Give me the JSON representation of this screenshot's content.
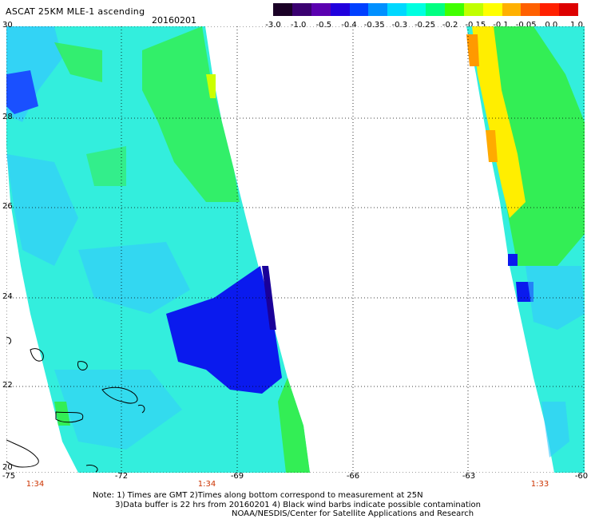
{
  "header": {
    "title": "ASCAT 25KM MLE-1 ascending",
    "date": "20160201"
  },
  "colorbar": {
    "labels": [
      "-3.0",
      "-1.0",
      "-0.5",
      "-0.4",
      "-0.35",
      "-0.3",
      "-0.25",
      "-0.2",
      "-0.15",
      "-0.1",
      "-0.05",
      "0.0",
      "1.0"
    ],
    "colors": [
      "#1a0026",
      "#3a0070",
      "#5a00b0",
      "#2000dd",
      "#0040ff",
      "#0090ff",
      "#00d8ff",
      "#00ffe0",
      "#00ff80",
      "#40ff00",
      "#c0ff00",
      "#ffff00",
      "#ffb000",
      "#ff6000",
      "#ff2000",
      "#dd0000"
    ]
  },
  "axes": {
    "lat_labels": [
      "30",
      "28",
      "26",
      "24",
      "22",
      "20"
    ],
    "lon_labels": [
      "-75",
      "-72",
      "-69",
      "-66",
      "-63",
      "-60"
    ],
    "time_labels": [
      "1:34",
      "1:34",
      "1:33"
    ]
  },
  "notes": {
    "line1": "Note: 1) Times are GMT 2)Times along bottom correspond to measurement at 25N",
    "line2": "3)Data buffer is 22 hrs from 20160201 4) Black wind barbs indicate possible contamination",
    "line3": "NOAA/NESDIS/Center for Satellite Applications and Research"
  },
  "palette": {
    "swath_fill": "#33eedd",
    "green": "#33ee55",
    "yellow": "#ffee00",
    "orange": "#ff9900",
    "blue": "#0a1aee",
    "deep_blue": "#1a0099",
    "light_blue": "#33c8ff"
  }
}
